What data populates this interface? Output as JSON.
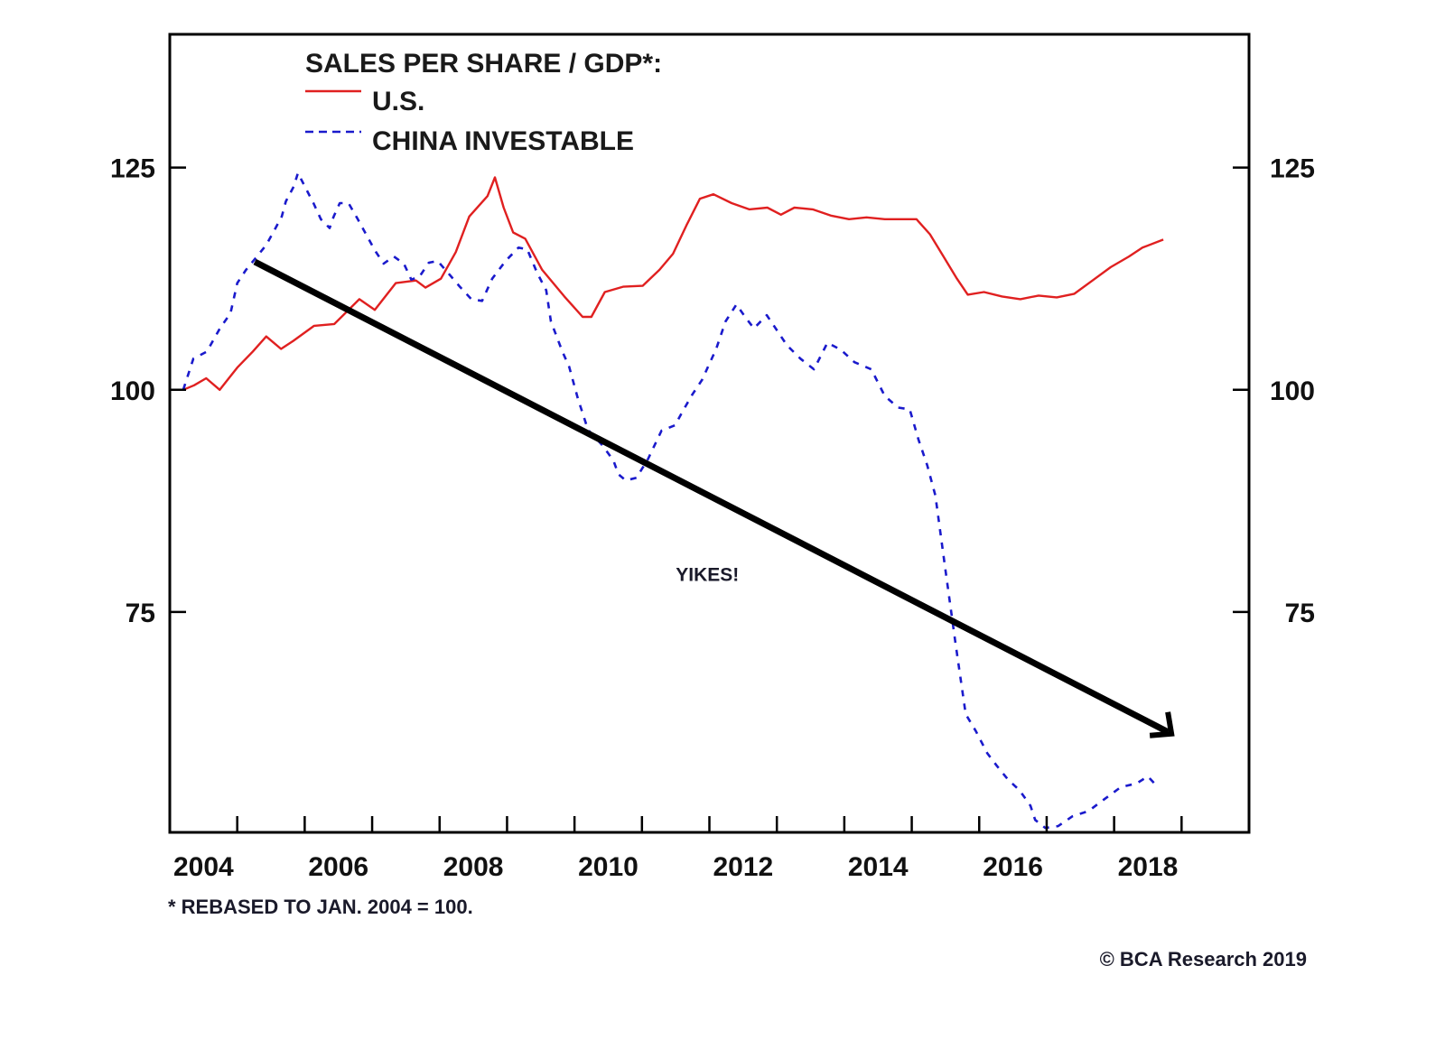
{
  "chart_data": {
    "type": "line",
    "title": "SALES PER SHARE / GDP*:",
    "xlabel": "",
    "ylabel": "",
    "xlim": [
      2004,
      2020
    ],
    "ylim": [
      50.2,
      140
    ],
    "x_tick_labels": [
      "2004",
      "2006",
      "2008",
      "2010",
      "2012",
      "2014",
      "2016",
      "2018"
    ],
    "x_tick_label_positions": [
      2004.5,
      2006.5,
      2008.5,
      2010.5,
      2012.5,
      2014.5,
      2016.5,
      2018.5
    ],
    "x_minor_ticks": [
      2005,
      2006,
      2007,
      2008,
      2009,
      2010,
      2011,
      2012,
      2013,
      2014,
      2015,
      2016,
      2017,
      2018,
      2019
    ],
    "y_ticks": [
      75,
      100,
      125
    ],
    "y_tick_labels": [
      "75",
      "100",
      "125"
    ],
    "grid": false,
    "legend_position": "top-left",
    "series": [
      {
        "name": "U.S.",
        "color": "#e02020",
        "style": "solid",
        "x": [
          2004.2,
          2004.36,
          2004.54,
          2004.74,
          2005.0,
          2005.23,
          2005.43,
          2005.65,
          2005.83,
          2006.14,
          2006.44,
          2006.81,
          2007.04,
          2007.35,
          2007.65,
          2007.79,
          2008.02,
          2008.24,
          2008.44,
          2008.71,
          2008.82,
          2008.95,
          2009.09,
          2009.27,
          2009.52,
          2009.85,
          2010.12,
          2010.25,
          2010.45,
          2010.72,
          2011.01,
          2011.26,
          2011.46,
          2011.66,
          2011.86,
          2012.06,
          2012.33,
          2012.59,
          2012.86,
          2013.06,
          2013.26,
          2013.53,
          2013.8,
          2014.07,
          2014.33,
          2014.6,
          2014.87,
          2015.07,
          2015.27,
          2015.47,
          2015.67,
          2015.83,
          2016.07,
          2016.34,
          2016.61,
          2016.88,
          2017.15,
          2017.41,
          2017.68,
          2017.95,
          2018.22,
          2018.42,
          2018.73
        ],
        "values": [
          100,
          100.5,
          101.3,
          100,
          102.5,
          104.3,
          106,
          104.6,
          105.5,
          107.2,
          107.4,
          110.2,
          109,
          112,
          112.3,
          111.5,
          112.5,
          115.5,
          119.5,
          121.8,
          123.9,
          120.5,
          117.7,
          117,
          113.5,
          110.5,
          108.2,
          108.2,
          111,
          111.6,
          111.7,
          113.5,
          115.3,
          118.5,
          121.5,
          122,
          121,
          120.3,
          120.5,
          119.7,
          120.5,
          120.3,
          119.6,
          119.2,
          119.4,
          119.2,
          119.2,
          119.2,
          117.5,
          115,
          112.5,
          110.7,
          111,
          110.5,
          110.2,
          110.6,
          110.4,
          110.8,
          112.3,
          113.8,
          115,
          116,
          116.9
        ]
      },
      {
        "name": "CHINA INVESTABLE",
        "color": "#1a1acc",
        "style": "dashed",
        "x": [
          2004.2,
          2004.35,
          2004.55,
          2004.75,
          2004.9,
          2005.0,
          2005.13,
          2005.27,
          2005.43,
          2005.54,
          2005.66,
          2005.72,
          2005.84,
          2005.9,
          2006.0,
          2006.13,
          2006.24,
          2006.37,
          2006.43,
          2006.52,
          2006.65,
          2006.78,
          2006.91,
          2007.04,
          2007.17,
          2007.32,
          2007.47,
          2007.58,
          2007.7,
          2007.84,
          2007.97,
          2008.12,
          2008.3,
          2008.47,
          2008.63,
          2008.78,
          2008.98,
          2009.17,
          2009.3,
          2009.45,
          2009.58,
          2009.65,
          2009.82,
          2009.92,
          2010.05,
          2010.2,
          2010.42,
          2010.58,
          2010.65,
          2010.76,
          2010.92,
          2011.09,
          2011.29,
          2011.49,
          2011.62,
          2011.75,
          2011.89,
          2012.1,
          2012.24,
          2012.4,
          2012.54,
          2012.66,
          2012.85,
          2013.01,
          2013.15,
          2013.35,
          2013.55,
          2013.75,
          2013.95,
          2014.15,
          2014.4,
          2014.6,
          2014.8,
          2014.97,
          2015.1,
          2015.23,
          2015.35,
          2015.5,
          2015.65,
          2015.8,
          2015.95,
          2016.12,
          2016.26,
          2016.42,
          2016.6,
          2016.76,
          2016.83,
          2016.98,
          2017.17,
          2017.38,
          2017.62,
          2017.85,
          2018.1,
          2018.33,
          2018.5,
          2018.66
        ],
        "values": [
          100,
          103.5,
          104.3,
          107,
          108.6,
          112,
          113.5,
          114.8,
          116.3,
          117.8,
          119.5,
          121.2,
          122.9,
          124.4,
          122.9,
          121,
          119.2,
          118.2,
          119.5,
          121,
          121,
          119.3,
          117.5,
          115.7,
          114.2,
          115,
          114.2,
          112.4,
          112.7,
          114.3,
          114.5,
          113.2,
          111.6,
          110.2,
          110,
          112.5,
          114.5,
          116,
          115.8,
          113.1,
          111.2,
          107.7,
          104.3,
          102.6,
          99,
          95.5,
          93.7,
          92,
          90.5,
          89.8,
          90.1,
          92.2,
          95.4,
          96,
          97.8,
          99.5,
          101.1,
          104.6,
          107.7,
          109.6,
          108.1,
          106.9,
          108.4,
          106.6,
          105,
          103.5,
          102.3,
          105.3,
          104.5,
          103.1,
          102.3,
          99.3,
          98,
          97.8,
          94.4,
          91.5,
          88.1,
          79.7,
          71.4,
          63.5,
          61.6,
          59.1,
          57.7,
          56.2,
          54.9,
          53.2,
          51.6,
          50.7,
          50.9,
          52,
          52.6,
          53.9,
          55.3,
          55.7,
          56.5,
          55.2
        ]
      }
    ],
    "trend_arrow": {
      "label": "trend-arrow",
      "start": {
        "x": 2005.26,
        "y": 114.4
      },
      "end": {
        "x": 2018.85,
        "y": 61.3
      },
      "color": "#000000"
    },
    "annotations": [
      {
        "text": "YIKES!",
        "x": 2011.97,
        "y": 79.3
      }
    ],
    "footnote": "* REBASED TO JAN. 2004 = 100.",
    "source": "© BCA Research 2019"
  }
}
